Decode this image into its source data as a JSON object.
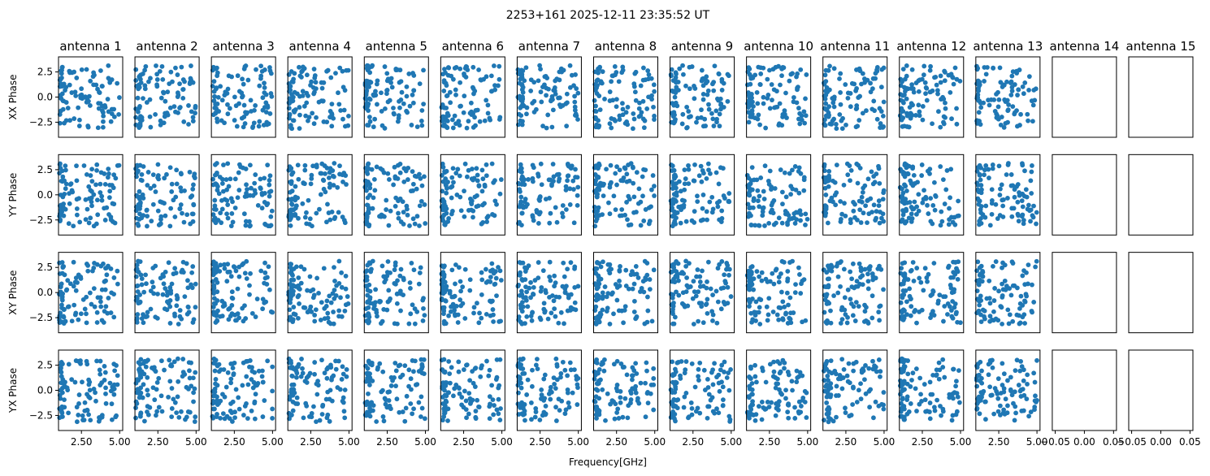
{
  "chart_data": {
    "type": "scatter",
    "title": "2253+161 2025-12-11 23:35:52 UT",
    "xlabel": "Frequency[GHz]",
    "rows": [
      "XX Phase",
      "YY Phase",
      "XY Phase",
      "YX Phase"
    ],
    "columns": [
      "antenna 1",
      "antenna 2",
      "antenna 3",
      "antenna 4",
      "antenna 5",
      "antenna 6",
      "antenna 7",
      "antenna 8",
      "antenna 9",
      "antenna 10",
      "antenna 11",
      "antenna 12",
      "antenna 13",
      "antenna 14",
      "antenna 15"
    ],
    "xlim": [
      1.0,
      5.2
    ],
    "ylim": [
      -4.0,
      4.0
    ],
    "yticks": [
      "2.5",
      "0.0",
      "−2.5"
    ],
    "xticks": [
      "2.50",
      "5.00"
    ],
    "empty_xticks": [
      "−0.05",
      "0.00",
      "0.05"
    ],
    "empty_columns": [
      "antenna 14",
      "antenna 15"
    ],
    "marker_color": "#1f77b4",
    "points_per_panel": 100,
    "phase_range": [
      -3.14,
      3.14
    ],
    "grid": false
  }
}
